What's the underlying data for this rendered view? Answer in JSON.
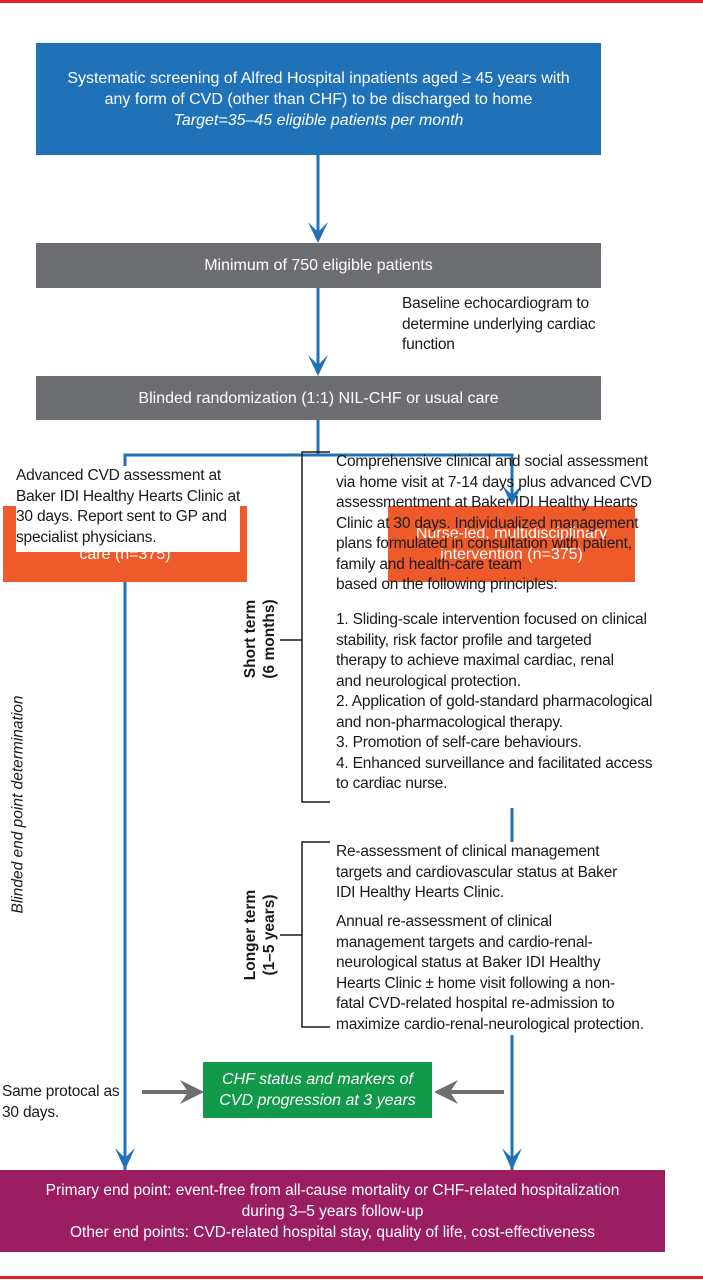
{
  "colors": {
    "blue": "#1f72b8",
    "gray": "#6d6e71",
    "orange": "#ee5a2a",
    "green": "#12994a",
    "purple": "#9c1e62",
    "red": "#e31e24",
    "arrow_gray": "#6d6e71"
  },
  "screening": {
    "text": "Systematic screening of Alfred Hospital inpatients aged ≥ 45 years with\nany form of CVD (other than CHF) to be discharged to home",
    "target": "Target=35–45 eligible patients per month"
  },
  "eligible": "Minimum of 750 eligible patients",
  "echo_note": "Baseline echocardiogram to\ndetermine underlying cardiac\nfunction",
  "randomization": "Blinded randomization (1:1) NIL-CHF or usual care",
  "usual_care": {
    "title": "Usual post-discharge/primary\ncare (n=375)",
    "assessment": "Advanced CVD assessment at\nBaker IDI Healthy Hearts Clinic at\n30 days. Report sent to GP and\nspecialist physicians.",
    "same_protocol": "Same protocal as\n30 days."
  },
  "intervention": {
    "title": "Nurse-led, multidisciplinary\nintervention (n=375)",
    "short_term_label": "Short term\n(6 months)",
    "short_term_intro": "Comprehensive clinical and social assessment\nvia home visit at 7-14 days plus advanced CVD\nassessmentment at Baker IDI Healthy Hearts\nClinic at 30 days. Individualized management\nplans formulated in consultation with patient,\nfamily and health-care team\nbased on the following principles:",
    "principles": [
      "1. Sliding-scale intervention focused on clinical\n    stability, risk factor profile and targeted\n    therapy to achieve maximal cardiac, renal\n    and neurological protection.",
      "2. Application of gold-standard pharmacological\n    and non-pharmacological therapy.",
      "3. Promotion of self-care behaviours.",
      "4. Enhanced surveillance and facilitated access\n    to cardiac nurse."
    ],
    "longer_term_label": "Longer term\n(1–5 years)",
    "reassessment": "Re-assessment of clinical management\ntargets and cardiovascular status at Baker\nIDI Healthy Hearts Clinic.",
    "annual": "Annual re-assessment of clinical\nmanagement targets and cardio-renal-\nneurological status at Baker IDI Healthy\nHearts Clinic  ± home visit following a non-\nfatal CVD-related hospital re-admission to\nmaximize cardio-renal-neurological protection."
  },
  "blinded_label": "Blinded end point determination",
  "chf_status": "CHF status and markers of\nCVD progression at 3 years",
  "endpoints": "Primary end point: event-free from all-cause mortality or CHF-related hospitalization\nduring 3–5 years follow-up\nOther end points: CVD-related hospital stay, quality of life, cost-effectiveness"
}
